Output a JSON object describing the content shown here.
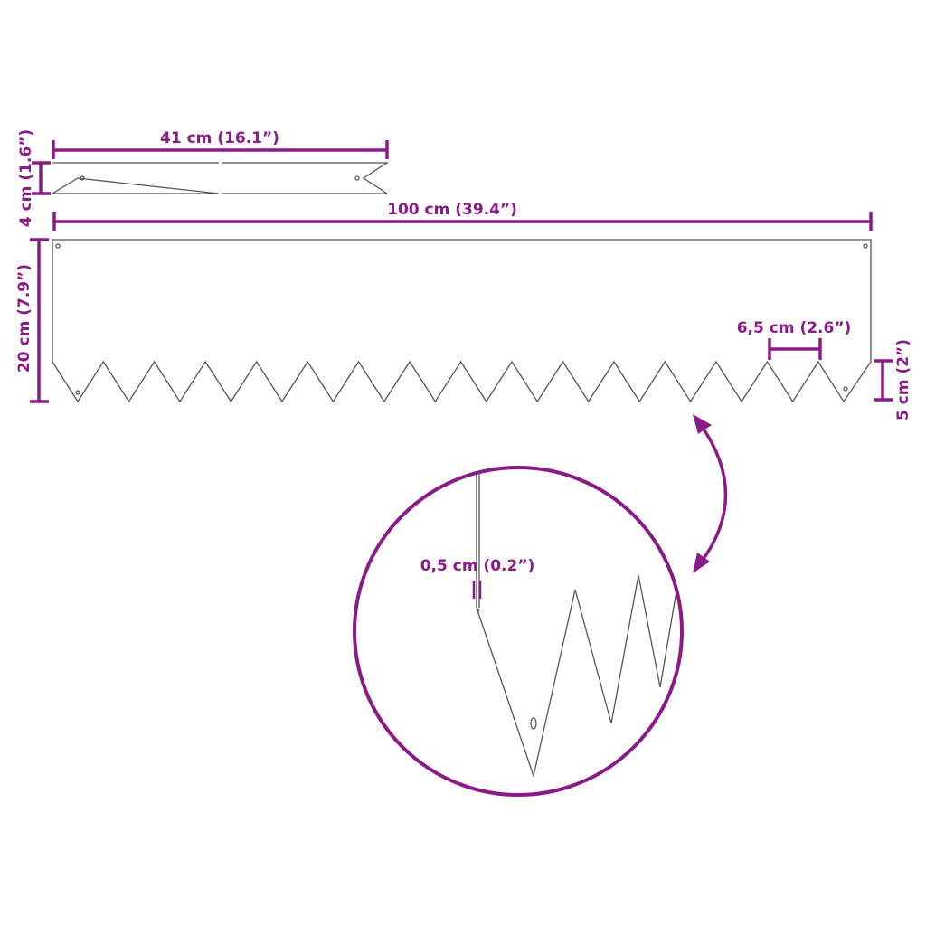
{
  "colors": {
    "dimension": "#8a1a88",
    "outline": "#555555"
  },
  "labels": {
    "stake_length": "41 cm (16.1”)",
    "stake_width": "4 cm (1.6”)",
    "panel_length": "100 cm (39.4”)",
    "panel_height": "20 cm (7.9”)",
    "tooth_pitch": "6,5 cm (2.6”)",
    "tooth_depth": "5 cm (2”)",
    "thickness": "0,5 cm (0.2”)"
  }
}
